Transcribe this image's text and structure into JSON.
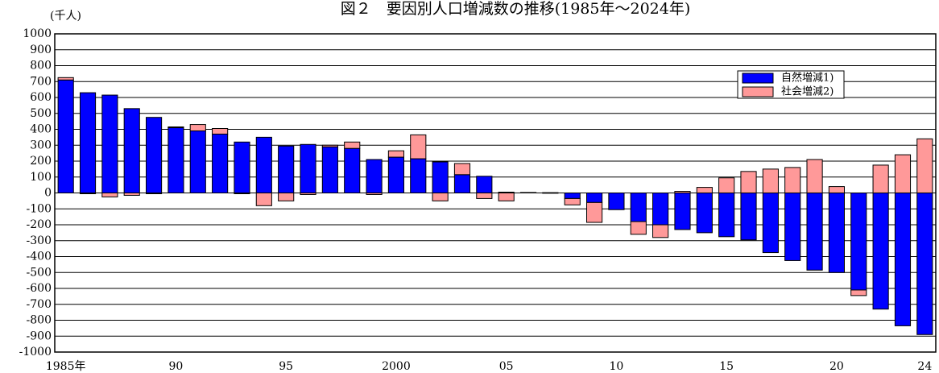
{
  "chart_data": {
    "type": "bar",
    "stacked": true,
    "title": "図２　要因別人口増減数の推移(1985年～2024年)",
    "y_label": "(千人)",
    "categories": [
      "1985年",
      null,
      null,
      null,
      null,
      "90",
      null,
      null,
      null,
      null,
      "95",
      null,
      null,
      null,
      null,
      "2000",
      null,
      null,
      null,
      null,
      "05",
      null,
      null,
      null,
      null,
      "10",
      null,
      null,
      null,
      null,
      "15",
      null,
      null,
      null,
      null,
      "20",
      null,
      null,
      null,
      "24"
    ],
    "series": [
      {
        "name": "自然増減1)",
        "color": "#0000ff",
        "values": [
          710,
          630,
          615,
          530,
          475,
          410,
          390,
          370,
          320,
          350,
          295,
          305,
          290,
          280,
          210,
          225,
          215,
          195,
          115,
          105,
          5,
          1,
          -2,
          -35,
          -60,
          -105,
          -180,
          -200,
          -230,
          -250,
          -275,
          -295,
          -375,
          -425,
          -485,
          -500,
          -610,
          -730,
          -835,
          -890
        ]
      },
      {
        "name": "社会増減2)",
        "color": "#ff9999",
        "values": [
          15,
          -5,
          -25,
          -15,
          -5,
          5,
          40,
          35,
          -5,
          -80,
          -50,
          -10,
          10,
          40,
          -10,
          40,
          150,
          -50,
          70,
          -35,
          -50,
          2,
          2,
          -40,
          -125,
          0,
          -80,
          -80,
          10,
          35,
          95,
          135,
          150,
          160,
          210,
          40,
          -35,
          175,
          240,
          340
        ]
      }
    ],
    "ylim": [
      -1000,
      1000
    ],
    "yticks": [
      -1000,
      -900,
      -800,
      -700,
      -600,
      -500,
      -400,
      -300,
      -200,
      -100,
      0,
      100,
      200,
      300,
      400,
      500,
      600,
      700,
      800,
      900,
      1000
    ],
    "grid": true,
    "legend": "upper right"
  }
}
